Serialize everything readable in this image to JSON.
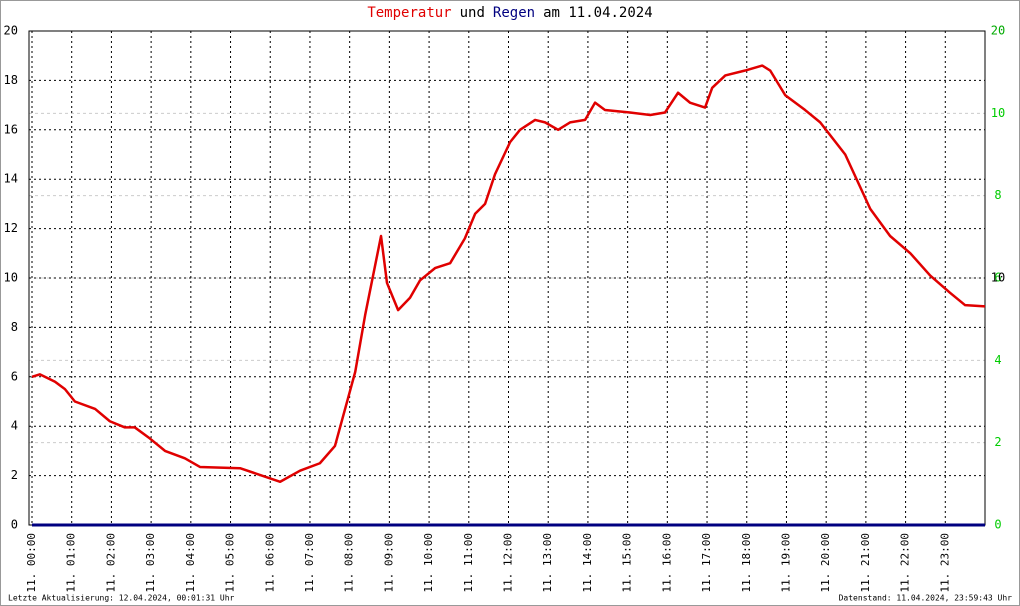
{
  "chart_data": {
    "type": "line",
    "title_parts": [
      {
        "text": "Temperatur",
        "color": "#e00000"
      },
      {
        "text": "und",
        "color": "#000000"
      },
      {
        "text": "Regen",
        "color": "#000080"
      },
      {
        "text": "am 11.04.2024",
        "color": "#000000"
      }
    ],
    "footer_left": "Letzte Aktualisierung: 12.04.2024, 00:01:31 Uhr",
    "footer_right": "Datenstand: 11.04.2024, 23:59:43 Uhr",
    "xlim": [
      0,
      24
    ],
    "xticks": [
      {
        "value": 0,
        "label": "11. 00:00"
      },
      {
        "value": 1,
        "label": "11. 01:00"
      },
      {
        "value": 2,
        "label": "11. 02:00"
      },
      {
        "value": 3,
        "label": "11. 03:00"
      },
      {
        "value": 4,
        "label": "11. 04:00"
      },
      {
        "value": 5,
        "label": "11. 05:00"
      },
      {
        "value": 6,
        "label": "11. 06:00"
      },
      {
        "value": 7,
        "label": "11. 07:00"
      },
      {
        "value": 8,
        "label": "11. 08:00"
      },
      {
        "value": 9,
        "label": "11. 09:00"
      },
      {
        "value": 10,
        "label": "11. 10:00"
      },
      {
        "value": 11,
        "label": "11. 11:00"
      },
      {
        "value": 12,
        "label": "11. 12:00"
      },
      {
        "value": 13,
        "label": "11. 13:00"
      },
      {
        "value": 14,
        "label": "11. 14:00"
      },
      {
        "value": 15,
        "label": "11. 15:00"
      },
      {
        "value": 16,
        "label": "11. 16:00"
      },
      {
        "value": 17,
        "label": "11. 17:00"
      },
      {
        "value": 18,
        "label": "11. 18:00"
      },
      {
        "value": 19,
        "label": "11. 19:00"
      },
      {
        "value": 20,
        "label": "11. 20:00"
      },
      {
        "value": 21,
        "label": "11. 21:00"
      },
      {
        "value": 22,
        "label": "11. 22:00"
      },
      {
        "value": 23,
        "label": "11. 23:00"
      }
    ],
    "ylim": [
      0,
      20
    ],
    "yticks": [
      0,
      2,
      4,
      6,
      8,
      10,
      12,
      14,
      16,
      18,
      20
    ],
    "y2lim": [
      0,
      12
    ],
    "y2ticks": [
      0,
      2,
      4,
      6,
      8,
      10
    ],
    "y2_top_label": "20",
    "y2_mid_label": "10",
    "grid": true,
    "series": [
      {
        "name": "Temperatur",
        "color": "#e00000",
        "x": [
          0,
          0.2,
          0.58,
          0.83,
          1.08,
          1.59,
          1.96,
          2.34,
          2.59,
          2.97,
          3.35,
          3.85,
          4.23,
          5.24,
          6.25,
          6.75,
          7.25,
          7.63,
          8.14,
          8.39,
          8.64,
          8.79,
          8.94,
          9.22,
          9.52,
          9.77,
          10.15,
          10.53,
          10.9,
          11.16,
          11.41,
          11.66,
          12.04,
          12.29,
          12.67,
          12.92,
          13.25,
          13.55,
          13.93,
          14.18,
          14.43,
          15.06,
          15.57,
          15.94,
          16.27,
          16.57,
          16.95,
          17.13,
          17.46,
          17.96,
          18.39,
          18.59,
          18.97,
          19.47,
          19.85,
          20.48,
          21.11,
          21.61,
          22.12,
          22.62,
          23.12,
          23.5,
          24
        ],
        "values": [
          6.0,
          6.1,
          5.8,
          5.5,
          5.0,
          4.7,
          4.2,
          3.95,
          3.95,
          3.5,
          3.0,
          2.7,
          2.35,
          2.3,
          1.75,
          2.2,
          2.5,
          3.2,
          6.2,
          8.5,
          10.5,
          11.7,
          9.8,
          8.7,
          9.2,
          9.9,
          10.4,
          10.6,
          11.6,
          12.6,
          13.0,
          14.2,
          15.5,
          16.0,
          16.4,
          16.3,
          16.0,
          16.3,
          16.4,
          17.1,
          16.8,
          16.7,
          16.6,
          16.7,
          17.5,
          17.1,
          16.9,
          17.7,
          18.2,
          18.4,
          18.6,
          18.4,
          17.4,
          16.8,
          16.3,
          15.0,
          12.8,
          11.7,
          11.0,
          10.1,
          9.4,
          8.9,
          8.85
        ]
      },
      {
        "name": "Regen",
        "color": "#000080",
        "axis": "y2",
        "x": [
          0,
          24
        ],
        "values": [
          0,
          0
        ]
      }
    ]
  }
}
